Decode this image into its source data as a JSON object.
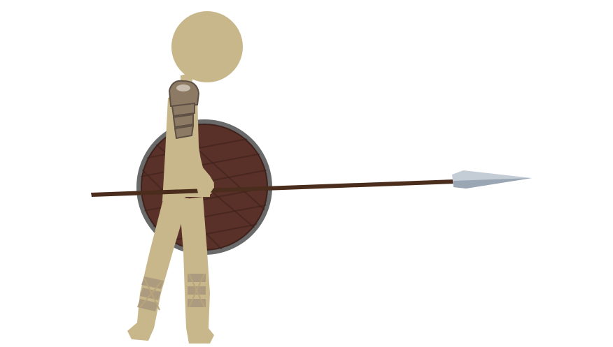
{
  "scene": {
    "character": "spearman",
    "icons": [
      "spear-icon",
      "round-shield-icon",
      "shoulder-armor-icon",
      "leg-wrap-icon"
    ],
    "colors": {
      "background": "#ffffff",
      "skin": "#c9b78c",
      "skin_shadow": "#b9a57a",
      "armor": "#8c7a64",
      "armor_dark": "#5e5044",
      "armor_highlight": "#c8bcae",
      "shield_wood": "#5a3128",
      "shield_wood_dark": "#3e221c",
      "shield_rim": "#6a6a6a",
      "spear_shaft": "#4a2d1c",
      "spear_head": "#c4ccd6",
      "spear_head_shade": "#9aa6b4",
      "wrap": "#a8977d"
    }
  }
}
